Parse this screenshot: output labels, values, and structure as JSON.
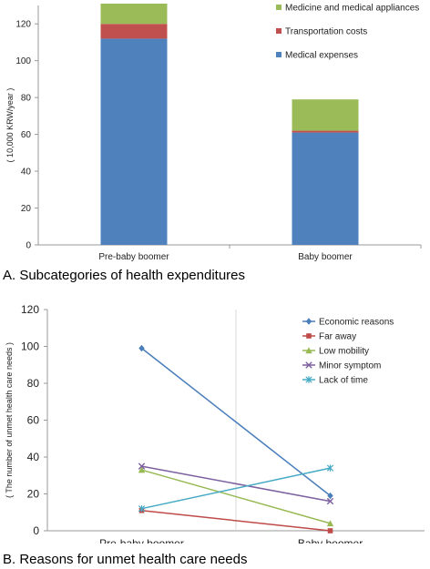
{
  "chart_data": [
    {
      "type": "bar",
      "stacked": true,
      "caption": "A. Subcategories of health expenditures",
      "ylabel": "( 10,000 KRW/year )",
      "categories": [
        "Pre-baby boomer",
        "Baby boomer"
      ],
      "ylim": [
        0,
        130
      ],
      "yticks": [
        0,
        20,
        40,
        60,
        80,
        100,
        120
      ],
      "series": [
        {
          "name": "Medical expenses",
          "values": [
            112,
            61
          ],
          "color": "#4f81bd"
        },
        {
          "name": "Transportation costs",
          "values": [
            8,
            1
          ],
          "color": "#c0504d"
        },
        {
          "name": "Medicine and medical appliances",
          "values": [
            11,
            17
          ],
          "color": "#9bbb59"
        }
      ],
      "legend_order": [
        "Medicine and medical appliances",
        "Transportation costs",
        "Medical expenses"
      ],
      "legend_position": "top-right",
      "grid": false
    },
    {
      "type": "line",
      "caption": "B. Reasons for unmet health care needs",
      "ylabel": "( The number of unmet health care needs )",
      "categories": [
        "Pre-baby boomer",
        "Baby boomer"
      ],
      "ylim": [
        0,
        120
      ],
      "yticks": [
        0,
        20,
        40,
        60,
        80,
        100,
        120
      ],
      "series": [
        {
          "name": "Economic reasons",
          "values": [
            99,
            19
          ],
          "color": "#4a7ebb",
          "marker": "diamond"
        },
        {
          "name": "Far away",
          "values": [
            11,
            0
          ],
          "color": "#be4b48",
          "marker": "square"
        },
        {
          "name": "Low mobility",
          "values": [
            33,
            4
          ],
          "color": "#98b954",
          "marker": "triangle"
        },
        {
          "name": "Minor symptom",
          "values": [
            35,
            16
          ],
          "color": "#7d60a0",
          "marker": "x"
        },
        {
          "name": "Lack of time",
          "values": [
            12,
            34
          ],
          "color": "#46aac5",
          "marker": "star"
        }
      ],
      "legend_position": "top-right",
      "grid": false
    }
  ]
}
